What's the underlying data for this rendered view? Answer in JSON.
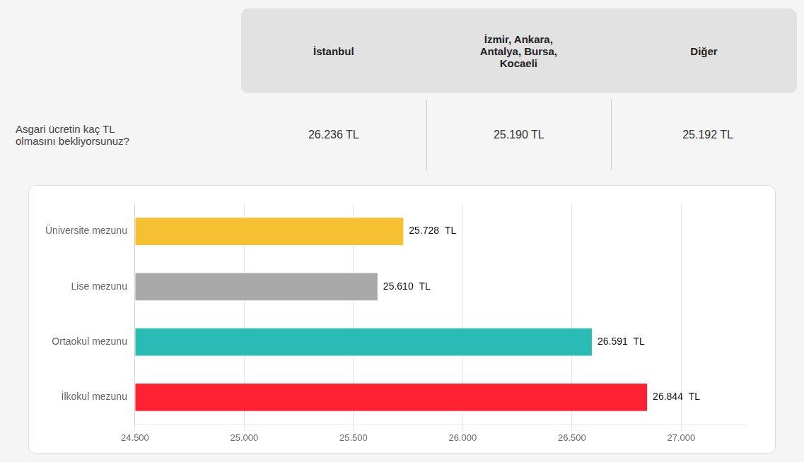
{
  "chart_data": [
    {
      "type": "table",
      "categories": [
        "İstanbul",
        "İzmir, Ankara,\nAntalya, Bursa,\nKocaeli",
        "Diğer"
      ],
      "values": [
        26236,
        25190,
        25192
      ],
      "value_labels": [
        "26.236 TL",
        "25.190 TL",
        "25.192 TL"
      ],
      "annotations": [
        "Asgari ücretin kaç TL\nolmasını bekliyorsunuz?"
      ]
    },
    {
      "type": "bar",
      "orientation": "horizontal",
      "categories": [
        "Üniversite mezunu",
        "Lise mezunu",
        "Ortaokul mezunu",
        "İlkokul mezunu"
      ],
      "values": [
        25728,
        25610,
        26591,
        26844
      ],
      "value_labels": [
        "25.728  TL",
        "25.610  TL",
        "26.591  TL",
        "26.844  TL"
      ],
      "data_labels": true,
      "colors": [
        "#F5C031",
        "#A9A9A9",
        "#2ABCB4",
        "#FF2233"
      ],
      "xlim": [
        24500,
        27300
      ],
      "xticks": [
        {
          "value": 24500,
          "label": "24.500"
        },
        {
          "value": 25000,
          "label": "25.000"
        },
        {
          "value": 25500,
          "label": "25.500"
        },
        {
          "value": 26000,
          "label": "26.000"
        },
        {
          "value": 26500,
          "label": "26.500"
        },
        {
          "value": 27000,
          "label": "27.000"
        }
      ],
      "grid": true
    }
  ]
}
